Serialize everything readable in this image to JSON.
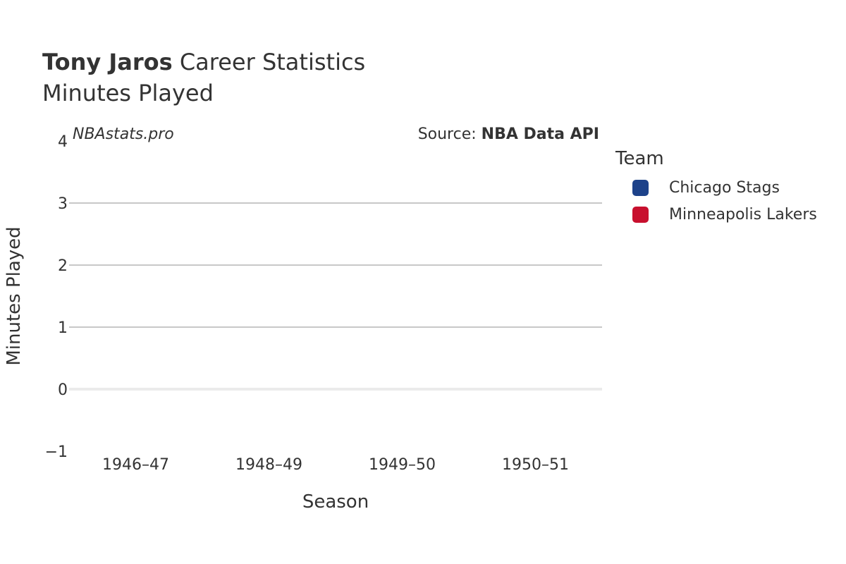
{
  "header": {
    "title_bold": "Tony Jaros",
    "title_rest": "Career Statistics",
    "subtitle": "Minutes Played",
    "watermark": "NBAstats.pro",
    "source_prefix": "Source: ",
    "source_name": "NBA Data API"
  },
  "legend": {
    "title": "Team",
    "items": [
      {
        "label": "Chicago Stags",
        "color": "#1d428a"
      },
      {
        "label": "Minneapolis Lakers",
        "color": "#c8102e"
      }
    ]
  },
  "chart_data": {
    "type": "bar",
    "title": "Tony Jaros Career Statistics",
    "subtitle": "Minutes Played",
    "xlabel": "Season",
    "ylabel": "Minutes Played",
    "categories": [
      "1946–47",
      "1948–49",
      "1949–50",
      "1950–51"
    ],
    "ylim": [
      -1,
      4
    ],
    "yticks": [
      -1,
      0,
      1,
      2,
      3,
      4
    ],
    "ytick_labels": [
      "−1",
      "0",
      "1",
      "2",
      "3",
      "4"
    ],
    "grid": true,
    "legend_position": "right",
    "series": [
      {
        "name": "Chicago Stags",
        "values": [
          null,
          null,
          null,
          null
        ]
      },
      {
        "name": "Minneapolis Lakers",
        "values": [
          null,
          null,
          null,
          null
        ]
      }
    ]
  }
}
